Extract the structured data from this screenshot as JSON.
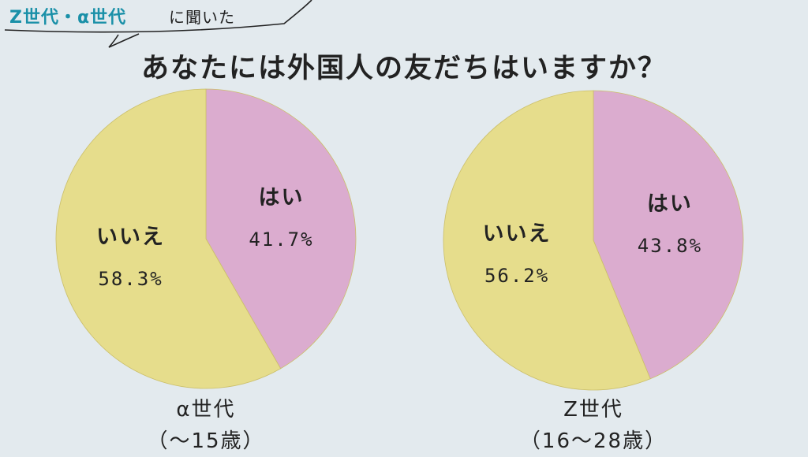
{
  "header": {
    "tag_highlight": "Z世代・α世代",
    "tag_suffix": "に聞いた",
    "question": "あなたには外国人の友だちはいますか？"
  },
  "colors": {
    "background": "#e3eaee",
    "yes": "#dbaccf",
    "no": "#e6dd8c",
    "tag": "#1a90a8"
  },
  "chart_data": [
    {
      "type": "pie",
      "title": "α世代",
      "subtitle": "（〜15歳）",
      "slices": [
        {
          "label": "はい",
          "value": 41.7,
          "display": "41.7%"
        },
        {
          "label": "いいえ",
          "value": 58.3,
          "display": "58.3%"
        }
      ]
    },
    {
      "type": "pie",
      "title": "Z世代",
      "subtitle": "（16〜28歳）",
      "slices": [
        {
          "label": "はい",
          "value": 43.8,
          "display": "43.8%"
        },
        {
          "label": "いいえ",
          "value": 56.2,
          "display": "56.2%"
        }
      ]
    }
  ]
}
